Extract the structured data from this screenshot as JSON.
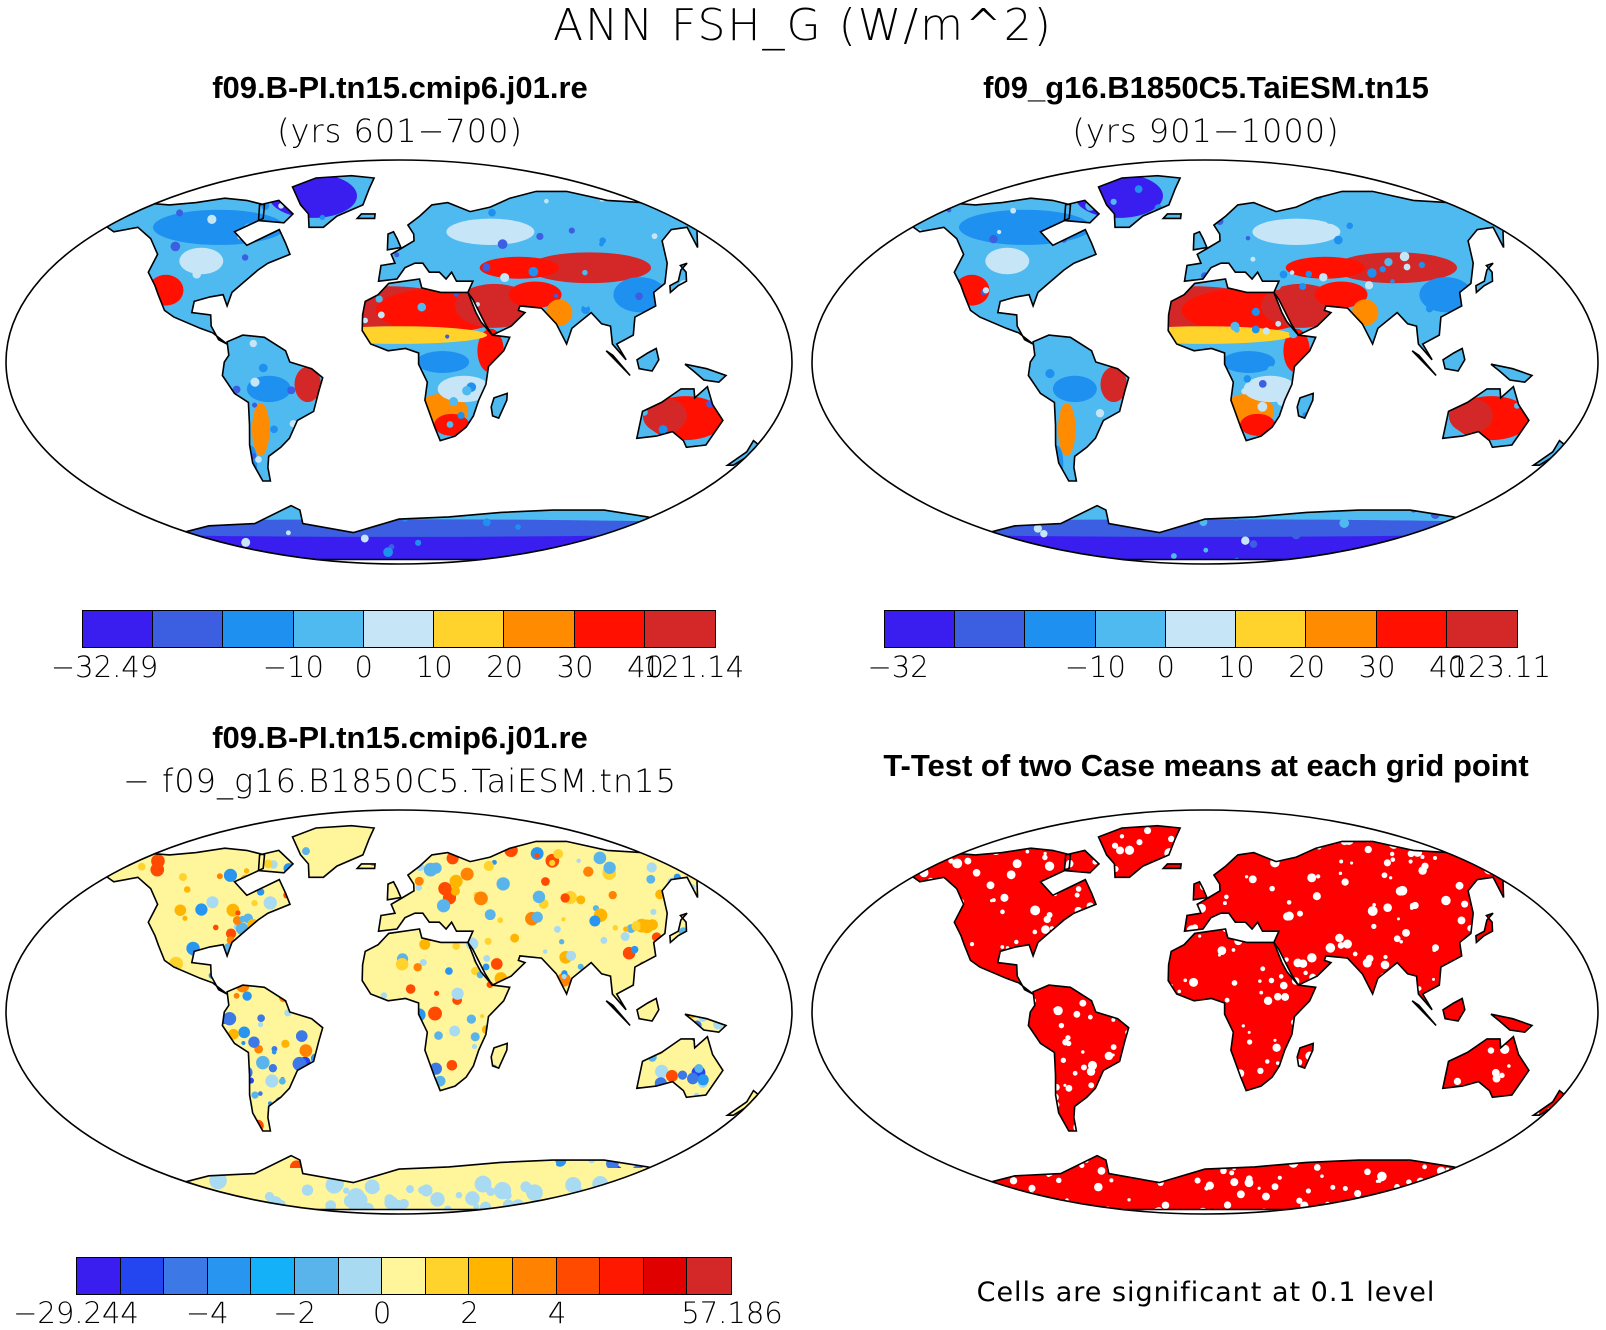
{
  "title": "ANN FSH_G (W/m^2)",
  "panels": [
    {
      "title": "f09.B-PI.tn15.cmip6.j01.re",
      "subtitle": "(yrs 601−700)",
      "colorbar": {
        "colors": [
          "#3a1ef0",
          "#3c5ee0",
          "#1e90f0",
          "#4fbaf0",
          "#c6e6f8",
          "#ffd22c",
          "#ff8c00",
          "#ff1000",
          "#d42828"
        ],
        "labels": [
          "−32.49",
          "−10",
          "0",
          "10",
          "20",
          "30",
          "40",
          "121.14"
        ]
      }
    },
    {
      "title": "f09_g16.B1850C5.TaiESM.tn15",
      "subtitle": "(yrs 901−1000)",
      "colorbar": {
        "colors": [
          "#3a1ef0",
          "#3c5ee0",
          "#1e90f0",
          "#4fbaf0",
          "#c6e6f8",
          "#ffd22c",
          "#ff8c00",
          "#ff1000",
          "#d42828"
        ],
        "labels": [
          "−32",
          "−10",
          "0",
          "10",
          "20",
          "30",
          "40",
          "123.11"
        ]
      }
    },
    {
      "title": "f09.B-PI.tn15.cmip6.j01.re",
      "subtitle": "− f09_g16.B1850C5.TaiESM.tn15",
      "colorbar": {
        "colors": [
          "#3a1ef0",
          "#2446f0",
          "#3c78e6",
          "#2896f0",
          "#14b0f8",
          "#5ab4ec",
          "#a8daf2",
          "#fff59a",
          "#ffd22c",
          "#ffb400",
          "#ff8200",
          "#ff4a00",
          "#ff1800",
          "#e00000",
          "#d42828"
        ],
        "labels": [
          "−29.244",
          "−4",
          "−2",
          "0",
          "2",
          "4",
          "57.186"
        ]
      }
    },
    {
      "title": "T-Test of two Case means at each grid point",
      "note": "Cells are significant at 0.1 level"
    }
  ],
  "legend_colors": {
    "significant": "#ff0000",
    "coastline": "#000000"
  }
}
